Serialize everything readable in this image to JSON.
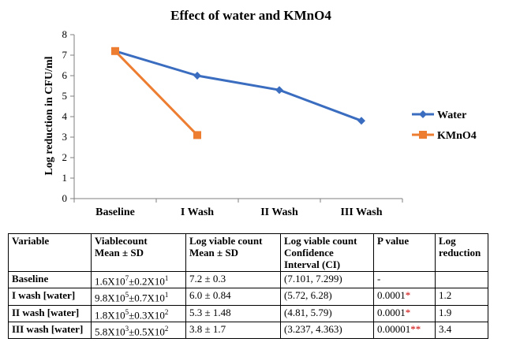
{
  "chart_data": {
    "type": "line",
    "title": "Effect of water and KMnO4",
    "ylabel": "Log reduction in CFU/ml",
    "xlabel": "",
    "categories": [
      "Baseline",
      "I Wash",
      "II Wash",
      "III Wash"
    ],
    "ylim": [
      0,
      8
    ],
    "yticks": [
      0,
      1,
      2,
      3,
      4,
      5,
      6,
      7,
      8
    ],
    "grid": false,
    "legend": "right",
    "series": [
      {
        "name": "Water",
        "color": "#3a6cbf",
        "marker": "diamond",
        "values": [
          7.2,
          6.0,
          5.3,
          3.8
        ]
      },
      {
        "name": "KMnO4",
        "color": "#ed7d31",
        "marker": "square",
        "values": [
          7.2,
          3.1,
          null,
          null
        ]
      }
    ]
  },
  "table": {
    "headers": [
      [
        "Variable"
      ],
      [
        "Viablecount",
        "Mean ± SD"
      ],
      [
        "Log viable count",
        "Mean ± SD"
      ],
      [
        "Log viable count",
        "Confidence",
        "Interval (CI)"
      ],
      [
        "P value"
      ],
      [
        "Log",
        "reduction"
      ]
    ],
    "rows": [
      {
        "variable": "Baseline",
        "count": {
          "a": "1.6X10",
          "ae": "7",
          "b": "±0.2X10",
          "be": "1"
        },
        "mean": "7.2 ± 0.3",
        "ci": "(7.101, 7.299)",
        "p": "-",
        "pstar": "",
        "logred": ""
      },
      {
        "variable": "I wash [water]",
        "count": {
          "a": "9.8X10",
          "ae": "5",
          "b": "±0.7X10",
          "be": "1"
        },
        "mean": "6.0 ± 0.84",
        "ci": "(5.72, 6.28)",
        "p": "0.0001",
        "pstar": "*",
        "logred": "1.2"
      },
      {
        "variable": "II wash [water]",
        "count": {
          "a": "1.8X10",
          "ae": "5",
          "b": "±0.3X10",
          "be": "2"
        },
        "mean": "5.3 ± 1.48",
        "ci": "(4.81, 5.79)",
        "p": "0.0001",
        "pstar": "*",
        "logred": "1.9"
      },
      {
        "variable": "III wash [water]",
        "count": {
          "a": "5.8X10",
          "ae": "3",
          "b": "±0.5X10",
          "be": "2"
        },
        "mean": "3.8 ± 1.7",
        "ci": "(3.237, 4.363)",
        "p": "0.00001",
        "pstar": "**",
        "logred": "3.4"
      }
    ]
  }
}
